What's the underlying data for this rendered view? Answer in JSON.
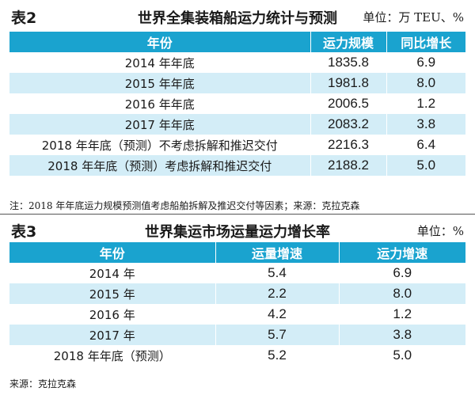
{
  "table2": {
    "label": "表2",
    "title": "世界全集装箱船运力统计与预测",
    "unit": "单位：万 TEU、%",
    "headers": [
      "年份",
      "运力规模",
      "同比增长"
    ],
    "rows": [
      [
        "2014 年年底",
        "1835.8",
        "6.9"
      ],
      [
        "2015 年年底",
        "1981.8",
        "8.0"
      ],
      [
        "2016 年年底",
        "2006.5",
        "1.2"
      ],
      [
        "2017 年年底",
        "2083.2",
        "3.8"
      ],
      [
        "2018 年年底（预测）不考虑拆解和推迟交付",
        "2216.3",
        "6.4"
      ],
      [
        "2018 年年底（预测）考虑拆解和推迟交付",
        "2188.2",
        "5.0"
      ]
    ],
    "note": "注：2018 年年底运力规模预测值考虑船舶拆解及推迟交付等因素；来源：克拉克森"
  },
  "table3": {
    "label": "表3",
    "title": "世界集运市场运量运力增长率",
    "unit": "单位：%",
    "headers": [
      "年份",
      "运量增速",
      "运力增速"
    ],
    "rows": [
      [
        "2014 年",
        "5.4",
        "6.9"
      ],
      [
        "2015 年",
        "2.2",
        "8.0"
      ],
      [
        "2016 年",
        "4.2",
        "1.2"
      ],
      [
        "2017 年",
        "5.7",
        "3.8"
      ],
      [
        "2018 年年底（预测）",
        "5.2",
        "5.0"
      ]
    ],
    "note": "来源：克拉克森"
  }
}
